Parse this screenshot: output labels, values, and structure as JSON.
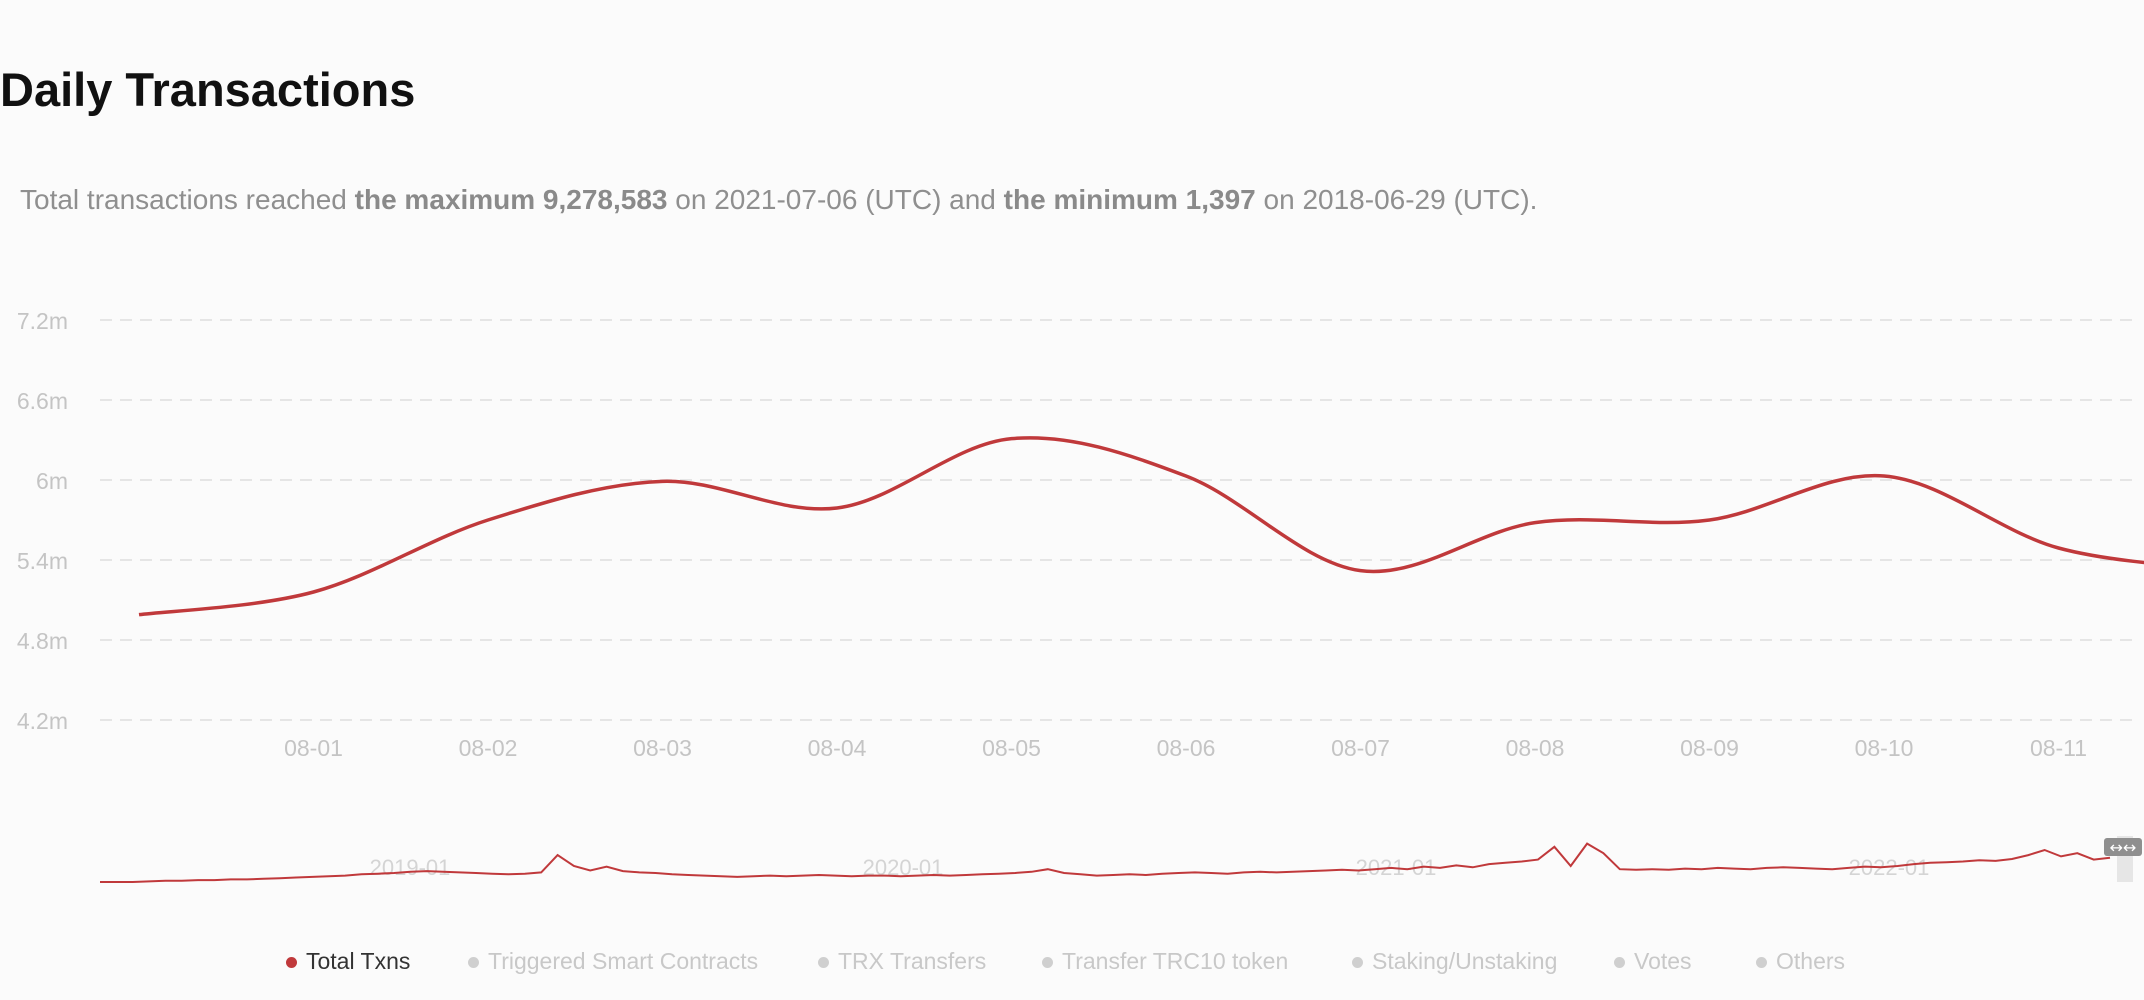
{
  "page": {
    "title": "Daily Transactions",
    "summary": {
      "prefix": "Total transactions reached ",
      "max_label": "the maximum 9,278,583",
      "max_suffix": " on 2021-07-06 (UTC) and ",
      "min_label": "the minimum 1,397",
      "min_suffix": " on 2018-06-29 (UTC)."
    }
  },
  "colors": {
    "series": "#c0393b",
    "grid": "#dedede",
    "axis_text": "#c4c4c4",
    "inactive": "#cfcfcf"
  },
  "chart_data": {
    "type": "line",
    "title": "",
    "xlabel": "",
    "ylabel": "",
    "ylim": [
      4200000,
      7200000
    ],
    "y_ticks": [
      {
        "value": 4200000,
        "label": "4.2m"
      },
      {
        "value": 4800000,
        "label": "4.8m"
      },
      {
        "value": 5400000,
        "label": "5.4m"
      },
      {
        "value": 6000000,
        "label": "6m"
      },
      {
        "value": 6600000,
        "label": "6.6m"
      },
      {
        "value": 7200000,
        "label": "7.2m"
      }
    ],
    "x_ticks": [
      "08-01",
      "08-02",
      "08-03",
      "08-04",
      "08-05",
      "08-06",
      "08-07",
      "08-08",
      "08-09",
      "08-10",
      "08-11"
    ],
    "grid": true,
    "legend_position": "bottom",
    "series": [
      {
        "name": "Total Txns",
        "points": [
          {
            "x": "07-31",
            "y": 4990000
          },
          {
            "x": "08-01",
            "y": 5160000
          },
          {
            "x": "08-02",
            "y": 5700000
          },
          {
            "x": "08-03",
            "y": 5990000
          },
          {
            "x": "08-04",
            "y": 5790000
          },
          {
            "x": "08-05",
            "y": 6310000
          },
          {
            "x": "08-06",
            "y": 6030000
          },
          {
            "x": "08-07",
            "y": 5320000
          },
          {
            "x": "08-08",
            "y": 5680000
          },
          {
            "x": "08-09",
            "y": 5700000
          },
          {
            "x": "08-10",
            "y": 6030000
          },
          {
            "x": "08-11",
            "y": 5490000
          },
          {
            "x": "08-12",
            "y": 5320000
          }
        ]
      }
    ],
    "navigator": {
      "ticks": [
        "2019-01",
        "2020-01",
        "2021-01",
        "2022-01"
      ],
      "values": [
        0,
        0,
        0,
        0.01,
        0.02,
        0.02,
        0.03,
        0.03,
        0.04,
        0.04,
        0.05,
        0.06,
        0.07,
        0.08,
        0.09,
        0.1,
        0.12,
        0.13,
        0.14,
        0.16,
        0.17,
        0.16,
        0.15,
        0.14,
        0.13,
        0.12,
        0.13,
        0.15,
        0.42,
        0.25,
        0.18,
        0.24,
        0.17,
        0.15,
        0.14,
        0.12,
        0.11,
        0.1,
        0.09,
        0.08,
        0.09,
        0.1,
        0.09,
        0.1,
        0.11,
        0.1,
        0.09,
        0.1,
        0.1,
        0.09,
        0.1,
        0.11,
        0.1,
        0.11,
        0.12,
        0.13,
        0.14,
        0.16,
        0.2,
        0.14,
        0.12,
        0.1,
        0.11,
        0.12,
        0.11,
        0.13,
        0.14,
        0.15,
        0.14,
        0.13,
        0.15,
        0.16,
        0.15,
        0.16,
        0.17,
        0.18,
        0.19,
        0.18,
        0.2,
        0.22,
        0.2,
        0.24,
        0.22,
        0.26,
        0.23,
        0.28,
        0.3,
        0.32,
        0.35,
        0.55,
        0.25,
        0.6,
        0.45,
        0.2,
        0.19,
        0.2,
        0.19,
        0.21,
        0.2,
        0.22,
        0.21,
        0.2,
        0.22,
        0.23,
        0.22,
        0.21,
        0.2,
        0.22,
        0.24,
        0.23,
        0.25,
        0.28,
        0.3,
        0.31,
        0.32,
        0.34,
        0.33,
        0.36,
        0.42,
        0.5,
        0.4,
        0.45,
        0.35,
        0.38
      ]
    }
  },
  "legend": {
    "items": [
      {
        "label": "Total Txns",
        "active": true
      },
      {
        "label": "Triggered Smart Contracts",
        "active": false
      },
      {
        "label": "TRX Transfers",
        "active": false
      },
      {
        "label": "Transfer TRC10 token",
        "active": false
      },
      {
        "label": "Staking/Unstaking",
        "active": false
      },
      {
        "label": "Votes",
        "active": false
      },
      {
        "label": "Others",
        "active": false
      }
    ]
  }
}
